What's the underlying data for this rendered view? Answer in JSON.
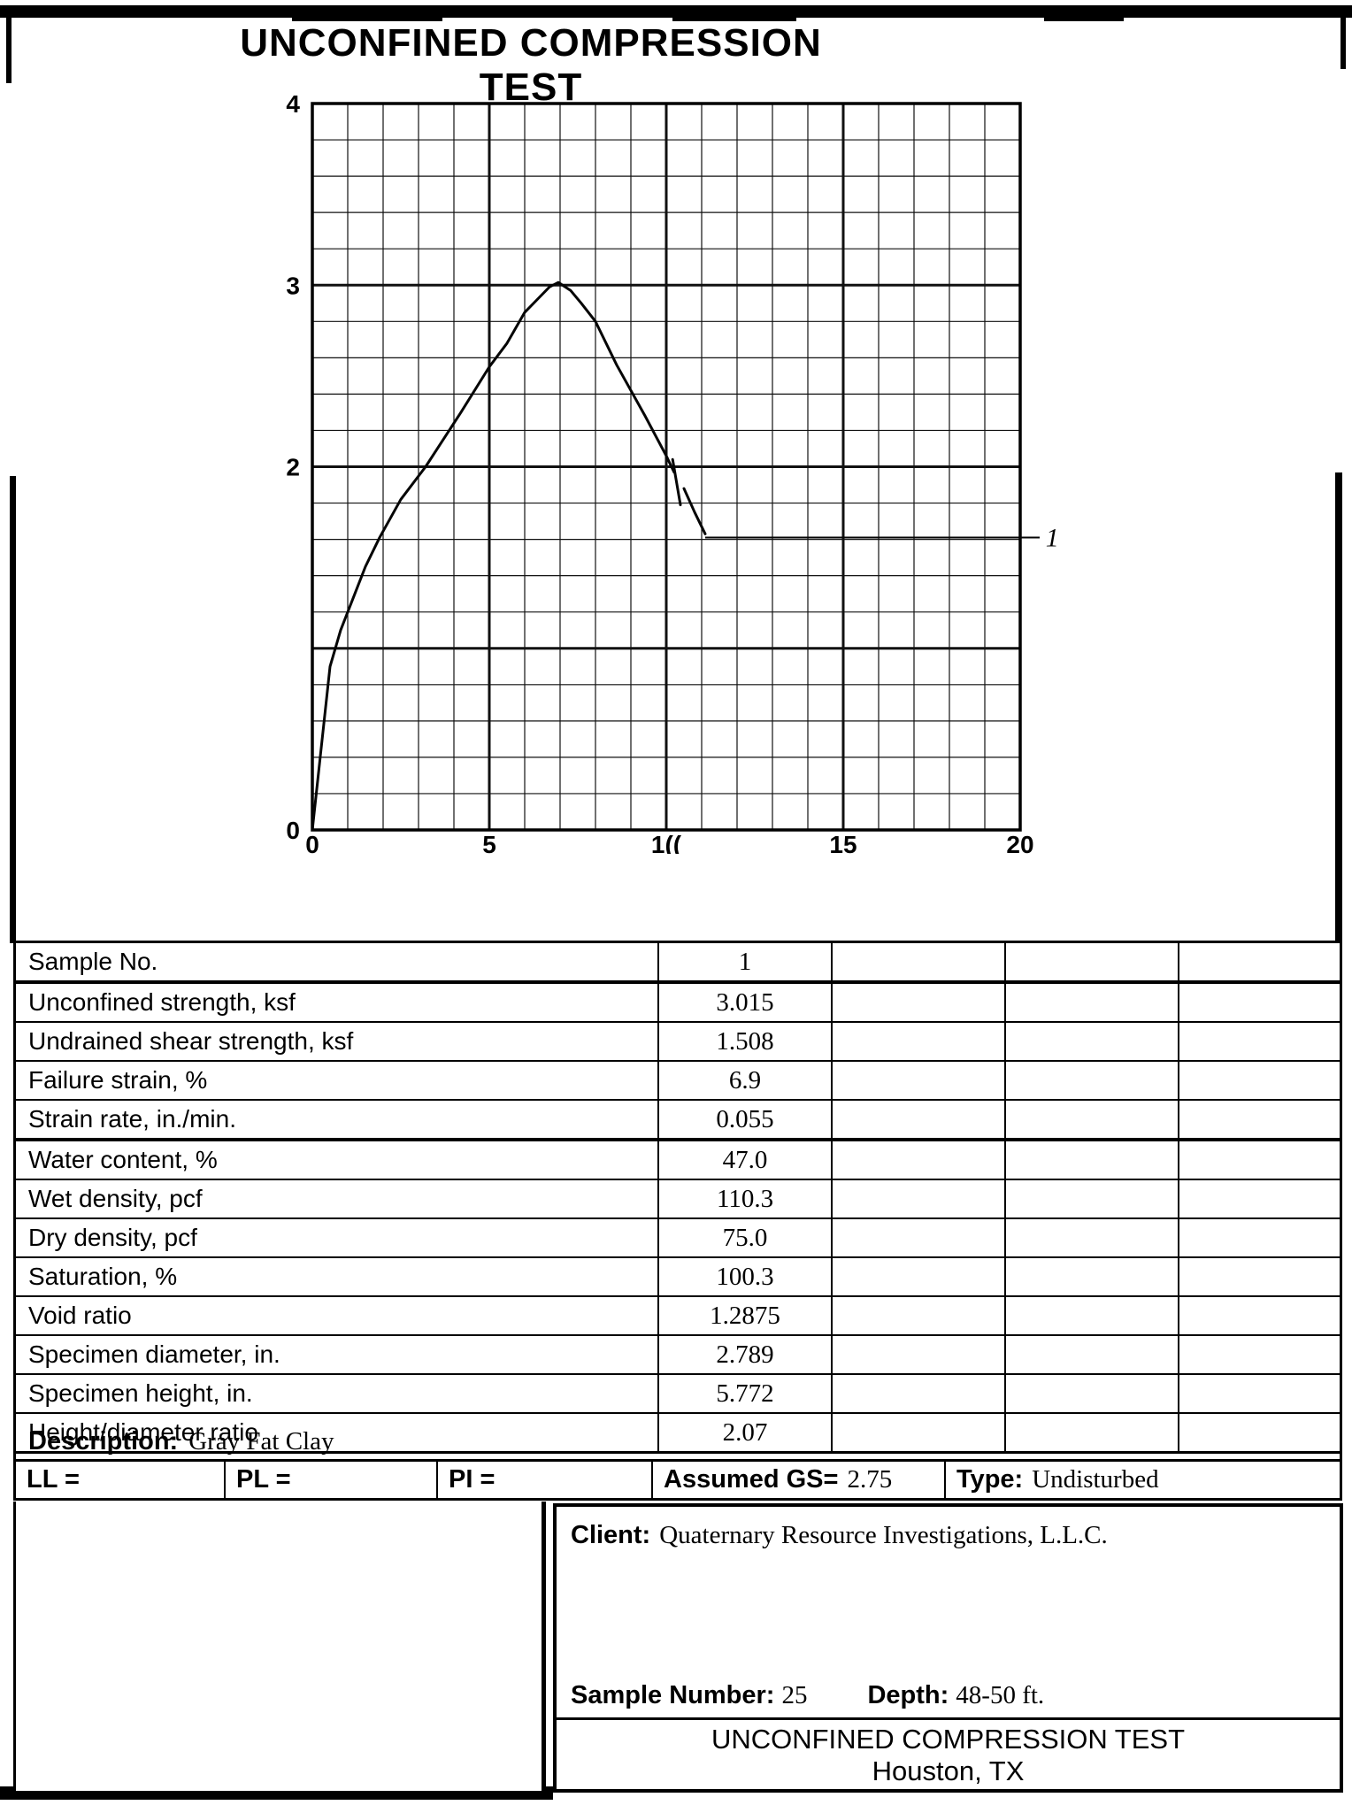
{
  "page": {
    "title": "UNCONFINED COMPRESSION TEST"
  },
  "chart_data": {
    "type": "line",
    "title": "",
    "xlabel": "",
    "ylabel": "",
    "xlim": [
      0,
      20
    ],
    "ylim": [
      0,
      4
    ],
    "grid": {
      "x_minor_step": 1,
      "y_minor_step": 0.2,
      "x_major_step": 5,
      "y_major_step": 1,
      "grid_on": true
    },
    "x_ticks": [
      {
        "value": 0,
        "label": "0"
      },
      {
        "value": 5,
        "label": "5"
      },
      {
        "value": 10,
        "label": "1(("
      },
      {
        "value": 15,
        "label": "15"
      },
      {
        "value": 20,
        "label": "20"
      }
    ],
    "y_ticks": [
      {
        "value": 4,
        "label": "4"
      },
      {
        "value": 3,
        "label": "3"
      },
      {
        "value": 2,
        "label": "2"
      },
      {
        "value": 0,
        "label": "0"
      }
    ],
    "series": [
      {
        "name": "1",
        "points_pre_break": [
          [
            0,
            0
          ],
          [
            0.25,
            0.45
          ],
          [
            0.5,
            0.9
          ],
          [
            0.8,
            1.1
          ],
          [
            1.1,
            1.25
          ],
          [
            1.5,
            1.45
          ],
          [
            1.9,
            1.61
          ],
          [
            2.5,
            1.82
          ],
          [
            3.2,
            2.0
          ],
          [
            4.2,
            2.3
          ],
          [
            5.0,
            2.55
          ],
          [
            5.5,
            2.68
          ],
          [
            6.0,
            2.85
          ],
          [
            6.4,
            2.93
          ],
          [
            6.7,
            2.99
          ],
          [
            6.95,
            3.015
          ],
          [
            7.3,
            2.97
          ],
          [
            7.6,
            2.9
          ],
          [
            8.0,
            2.8
          ],
          [
            8.6,
            2.56
          ],
          [
            9.4,
            2.28
          ],
          [
            10.0,
            2.06
          ],
          [
            10.22,
            1.97
          ]
        ],
        "points_post_break": [
          [
            10.5,
            1.88
          ],
          [
            10.8,
            1.75
          ],
          [
            11.1,
            1.63
          ]
        ],
        "break_mark": [
          [
            10.18,
            2.04
          ],
          [
            10.4,
            1.79
          ]
        ],
        "leader_from": [
          11.1,
          1.61
        ],
        "leader_to_x": 20.55,
        "curve_label": "1",
        "curve_label_at": [
          20.72,
          1.61
        ]
      }
    ],
    "peak": {
      "strain_pct": 6.9,
      "stress_ksf": 3.015
    }
  },
  "results_table": {
    "rows": [
      {
        "label": "Sample No.",
        "values": [
          "1",
          "",
          "",
          ""
        ]
      },
      {
        "label": "Unconfined strength, ksf",
        "values": [
          "3.015",
          "",
          "",
          ""
        ]
      },
      {
        "label": "Undrained shear strength, ksf",
        "values": [
          "1.508",
          "",
          "",
          ""
        ]
      },
      {
        "label": "Failure strain, %",
        "values": [
          "6.9",
          "",
          "",
          ""
        ]
      },
      {
        "label": "Strain rate, in./min.",
        "values": [
          "0.055",
          "",
          "",
          ""
        ]
      },
      {
        "label": "Water content, %",
        "values": [
          "47.0",
          "",
          "",
          ""
        ]
      },
      {
        "label": "Wet density, pcf",
        "values": [
          "110.3",
          "",
          "",
          ""
        ]
      },
      {
        "label": "Dry density, pcf",
        "values": [
          "75.0",
          "",
          "",
          ""
        ]
      },
      {
        "label": "Saturation, %",
        "values": [
          "100.3",
          "",
          "",
          ""
        ]
      },
      {
        "label": "Void ratio",
        "values": [
          "1.2875",
          "",
          "",
          ""
        ]
      },
      {
        "label": "Specimen diameter, in.",
        "values": [
          "2.789",
          "",
          "",
          ""
        ]
      },
      {
        "label": "Specimen height, in.",
        "values": [
          "5.772",
          "",
          "",
          ""
        ]
      },
      {
        "label": "Height/diameter ratio",
        "values": [
          "2.07",
          "",
          "",
          ""
        ]
      }
    ]
  },
  "description": {
    "label": "Description:",
    "value": "Gray Fat Clay"
  },
  "limits_row": {
    "ll_label": "LL =",
    "pl_label": "PL =",
    "pi_label": "PI =",
    "gs_label": "Assumed GS=",
    "gs_value": "2.75",
    "type_label": "Type:",
    "type_value": "Undisturbed"
  },
  "footer": {
    "client_label": "Client:",
    "client_value": "Quaternary Resource Investigations, L.L.C.",
    "sample_label": "Sample Number:",
    "sample_value": "25",
    "depth_label": "Depth:",
    "depth_value": "48-50 ft.",
    "test_title": "UNCONFINED COMPRESSION TEST",
    "location": "Houston, TX"
  }
}
